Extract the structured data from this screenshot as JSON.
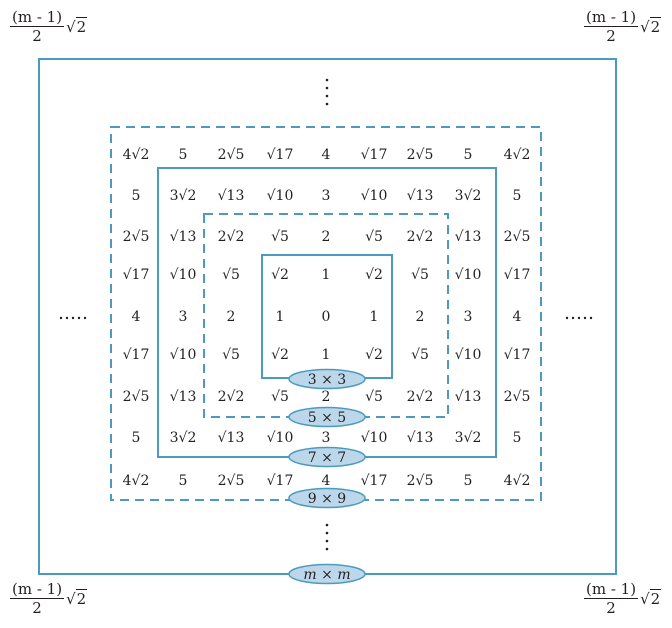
{
  "corners": {
    "numerator": "(m - 1)",
    "denominator": "2",
    "radical": "2"
  },
  "grid": [
    [
      "4√2",
      "5",
      "2√5",
      "√17",
      "4",
      "√17",
      "2√5",
      "5",
      "4√2"
    ],
    [
      "5",
      "3√2",
      "√13",
      "√10",
      "3",
      "√10",
      "√13",
      "3√2",
      "5"
    ],
    [
      "2√5",
      "√13",
      "2√2",
      "√5",
      "2",
      "√5",
      "2√2",
      "√13",
      "2√5"
    ],
    [
      "√17",
      "√10",
      "√5",
      "√2",
      "1",
      "√2",
      "√5",
      "√10",
      "√17"
    ],
    [
      "4",
      "3",
      "2",
      "1",
      "0",
      "1",
      "2",
      "3",
      "4"
    ],
    [
      "√17",
      "√10",
      "√5",
      "√2",
      "1",
      "√2",
      "√5",
      "√10",
      "√17"
    ],
    [
      "2√5",
      "√13",
      "2√2",
      "√5",
      "2",
      "√5",
      "2√2",
      "√13",
      "2√5"
    ],
    [
      "5",
      "3√2",
      "√13",
      "√10",
      "3",
      "√10",
      "√13",
      "3√2",
      "5"
    ],
    [
      "4√2",
      "5",
      "2√5",
      "√17",
      "4",
      "√17",
      "2√5",
      "5",
      "4√2"
    ]
  ],
  "window_labels": [
    "3 × 3",
    "5 × 5",
    "7 × 7",
    "9 × 9"
  ],
  "outer_label": "m × m",
  "ellipsis_h": "·····",
  "ellipsis_v": "⋮",
  "colors": {
    "solid_line": "#4a9bbf",
    "dashed_line": "#4a9bbf",
    "label_fill": "#bcd7ea",
    "label_stroke": "#4a9bbf",
    "text": "#231f20"
  }
}
